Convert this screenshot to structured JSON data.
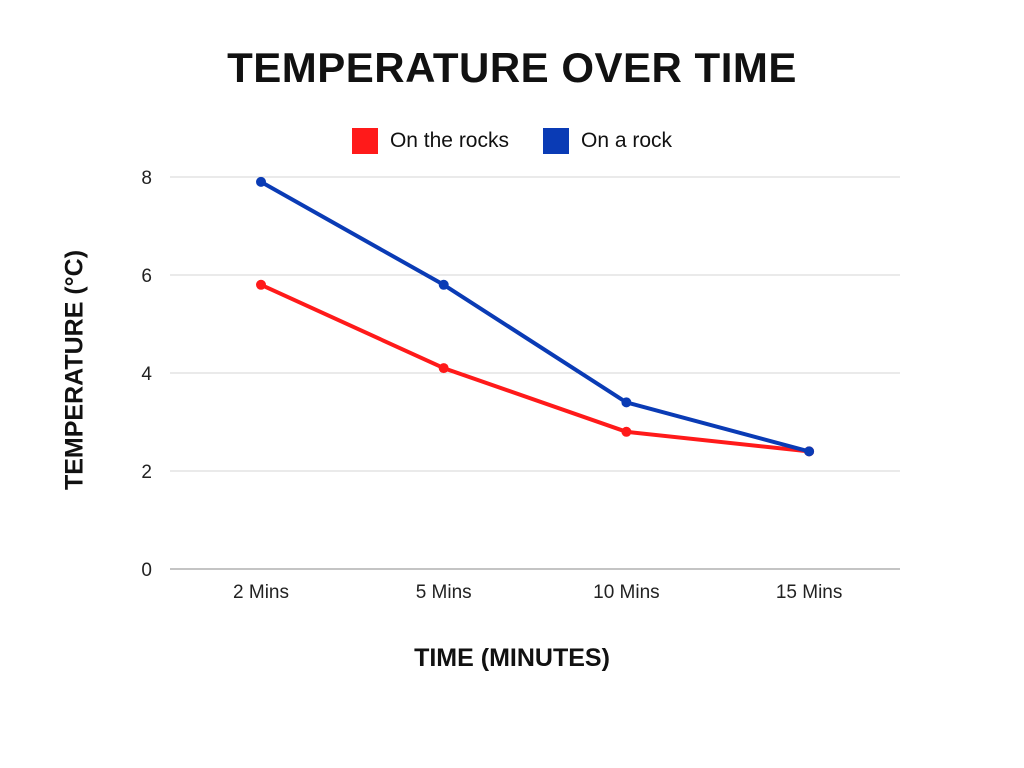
{
  "chart_data": {
    "type": "line",
    "title": "TEMPERATURE OVER TIME",
    "xlabel": "TIME (MINUTES)",
    "ylabel": "TEMPERATURE (°C)",
    "categories": [
      "2 Mins",
      "5 Mins",
      "10 Mins",
      "15 Mins"
    ],
    "ylim": [
      0,
      8
    ],
    "yticks": [
      "0",
      "2",
      "4",
      "6",
      "8"
    ],
    "grid": true,
    "legend_position": "top",
    "series": [
      {
        "name": "On the rocks",
        "color": "#ff1a1a",
        "values": [
          5.8,
          4.1,
          2.8,
          2.4
        ]
      },
      {
        "name": "On a rock",
        "color": "#0a3bb5",
        "values": [
          7.9,
          5.8,
          3.4,
          2.4
        ]
      }
    ]
  }
}
